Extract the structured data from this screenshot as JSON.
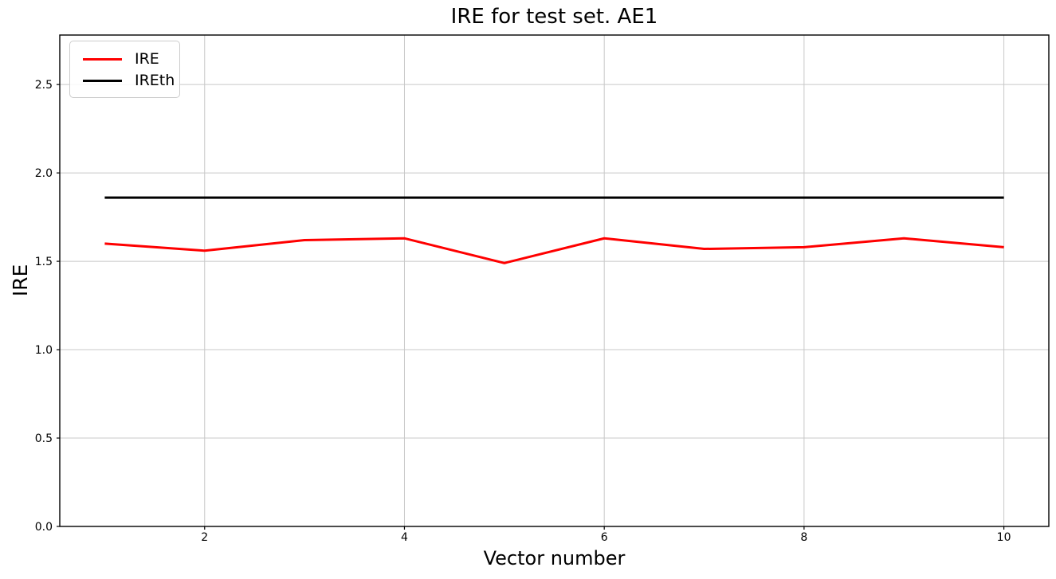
{
  "chart_data": {
    "type": "line",
    "title": "IRE for test set. AE1",
    "xlabel": "Vector number",
    "ylabel": "IRE",
    "x": [
      1,
      2,
      3,
      4,
      5,
      6,
      7,
      8,
      9,
      10
    ],
    "series": [
      {
        "name": "IRE",
        "color": "#ff0000",
        "values": [
          1.6,
          1.56,
          1.62,
          1.63,
          1.49,
          1.63,
          1.57,
          1.58,
          1.63,
          1.58
        ]
      },
      {
        "name": "IREth",
        "color": "#000000",
        "values": [
          1.86,
          1.86,
          1.86,
          1.86,
          1.86,
          1.86,
          1.86,
          1.86,
          1.86,
          1.86
        ]
      }
    ],
    "xlim": [
      0.55,
      10.45
    ],
    "ylim": [
      0,
      2.78
    ],
    "xticks": [
      2,
      4,
      6,
      8,
      10
    ],
    "xtick_labels": [
      "2",
      "4",
      "6",
      "8",
      "10"
    ],
    "yticks": [
      0,
      0.5,
      1.0,
      1.5,
      2.0,
      2.5
    ],
    "ytick_labels": [
      "0.0",
      "0.5",
      "1.0",
      "1.5",
      "2.0",
      "2.5"
    ],
    "grid": true,
    "legend_position": "upper left",
    "colors": {
      "grid": "#c8c8c8",
      "axis": "#000000",
      "tick_label": "#000000",
      "background": "#ffffff"
    }
  }
}
